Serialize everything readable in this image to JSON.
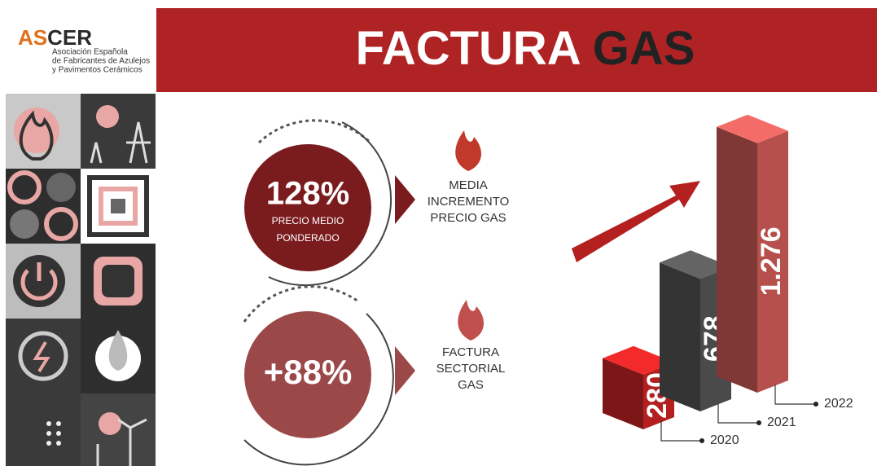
{
  "header": {
    "logo_part_1": "AS",
    "logo_part_2": "CER",
    "org_lines": [
      "Asociación Española",
      "de Fabricantes de Azulejos",
      "y Pavimentos Cerámicos"
    ],
    "title_1": "FACTURA",
    "title_2": "GAS"
  },
  "stats": [
    {
      "value": "128%",
      "detail": [
        "PRECIO MEDIO",
        "PONDERADO"
      ],
      "caption": [
        "MEDIA",
        "INCREMENTO",
        "PRECIO GAS"
      ]
    },
    {
      "value": "+88%",
      "caption": [
        "FACTURA",
        "SECTORIAL",
        "GAS"
      ]
    }
  ],
  "chart_data": {
    "type": "bar",
    "categories": [
      "2020",
      "2021",
      "2022"
    ],
    "values": [
      280,
      678,
      1276
    ],
    "value_labels": [
      "280",
      "678",
      "1.276"
    ],
    "colors": [
      "#b3201f",
      "#4a4a4a",
      "#b5504c"
    ]
  }
}
